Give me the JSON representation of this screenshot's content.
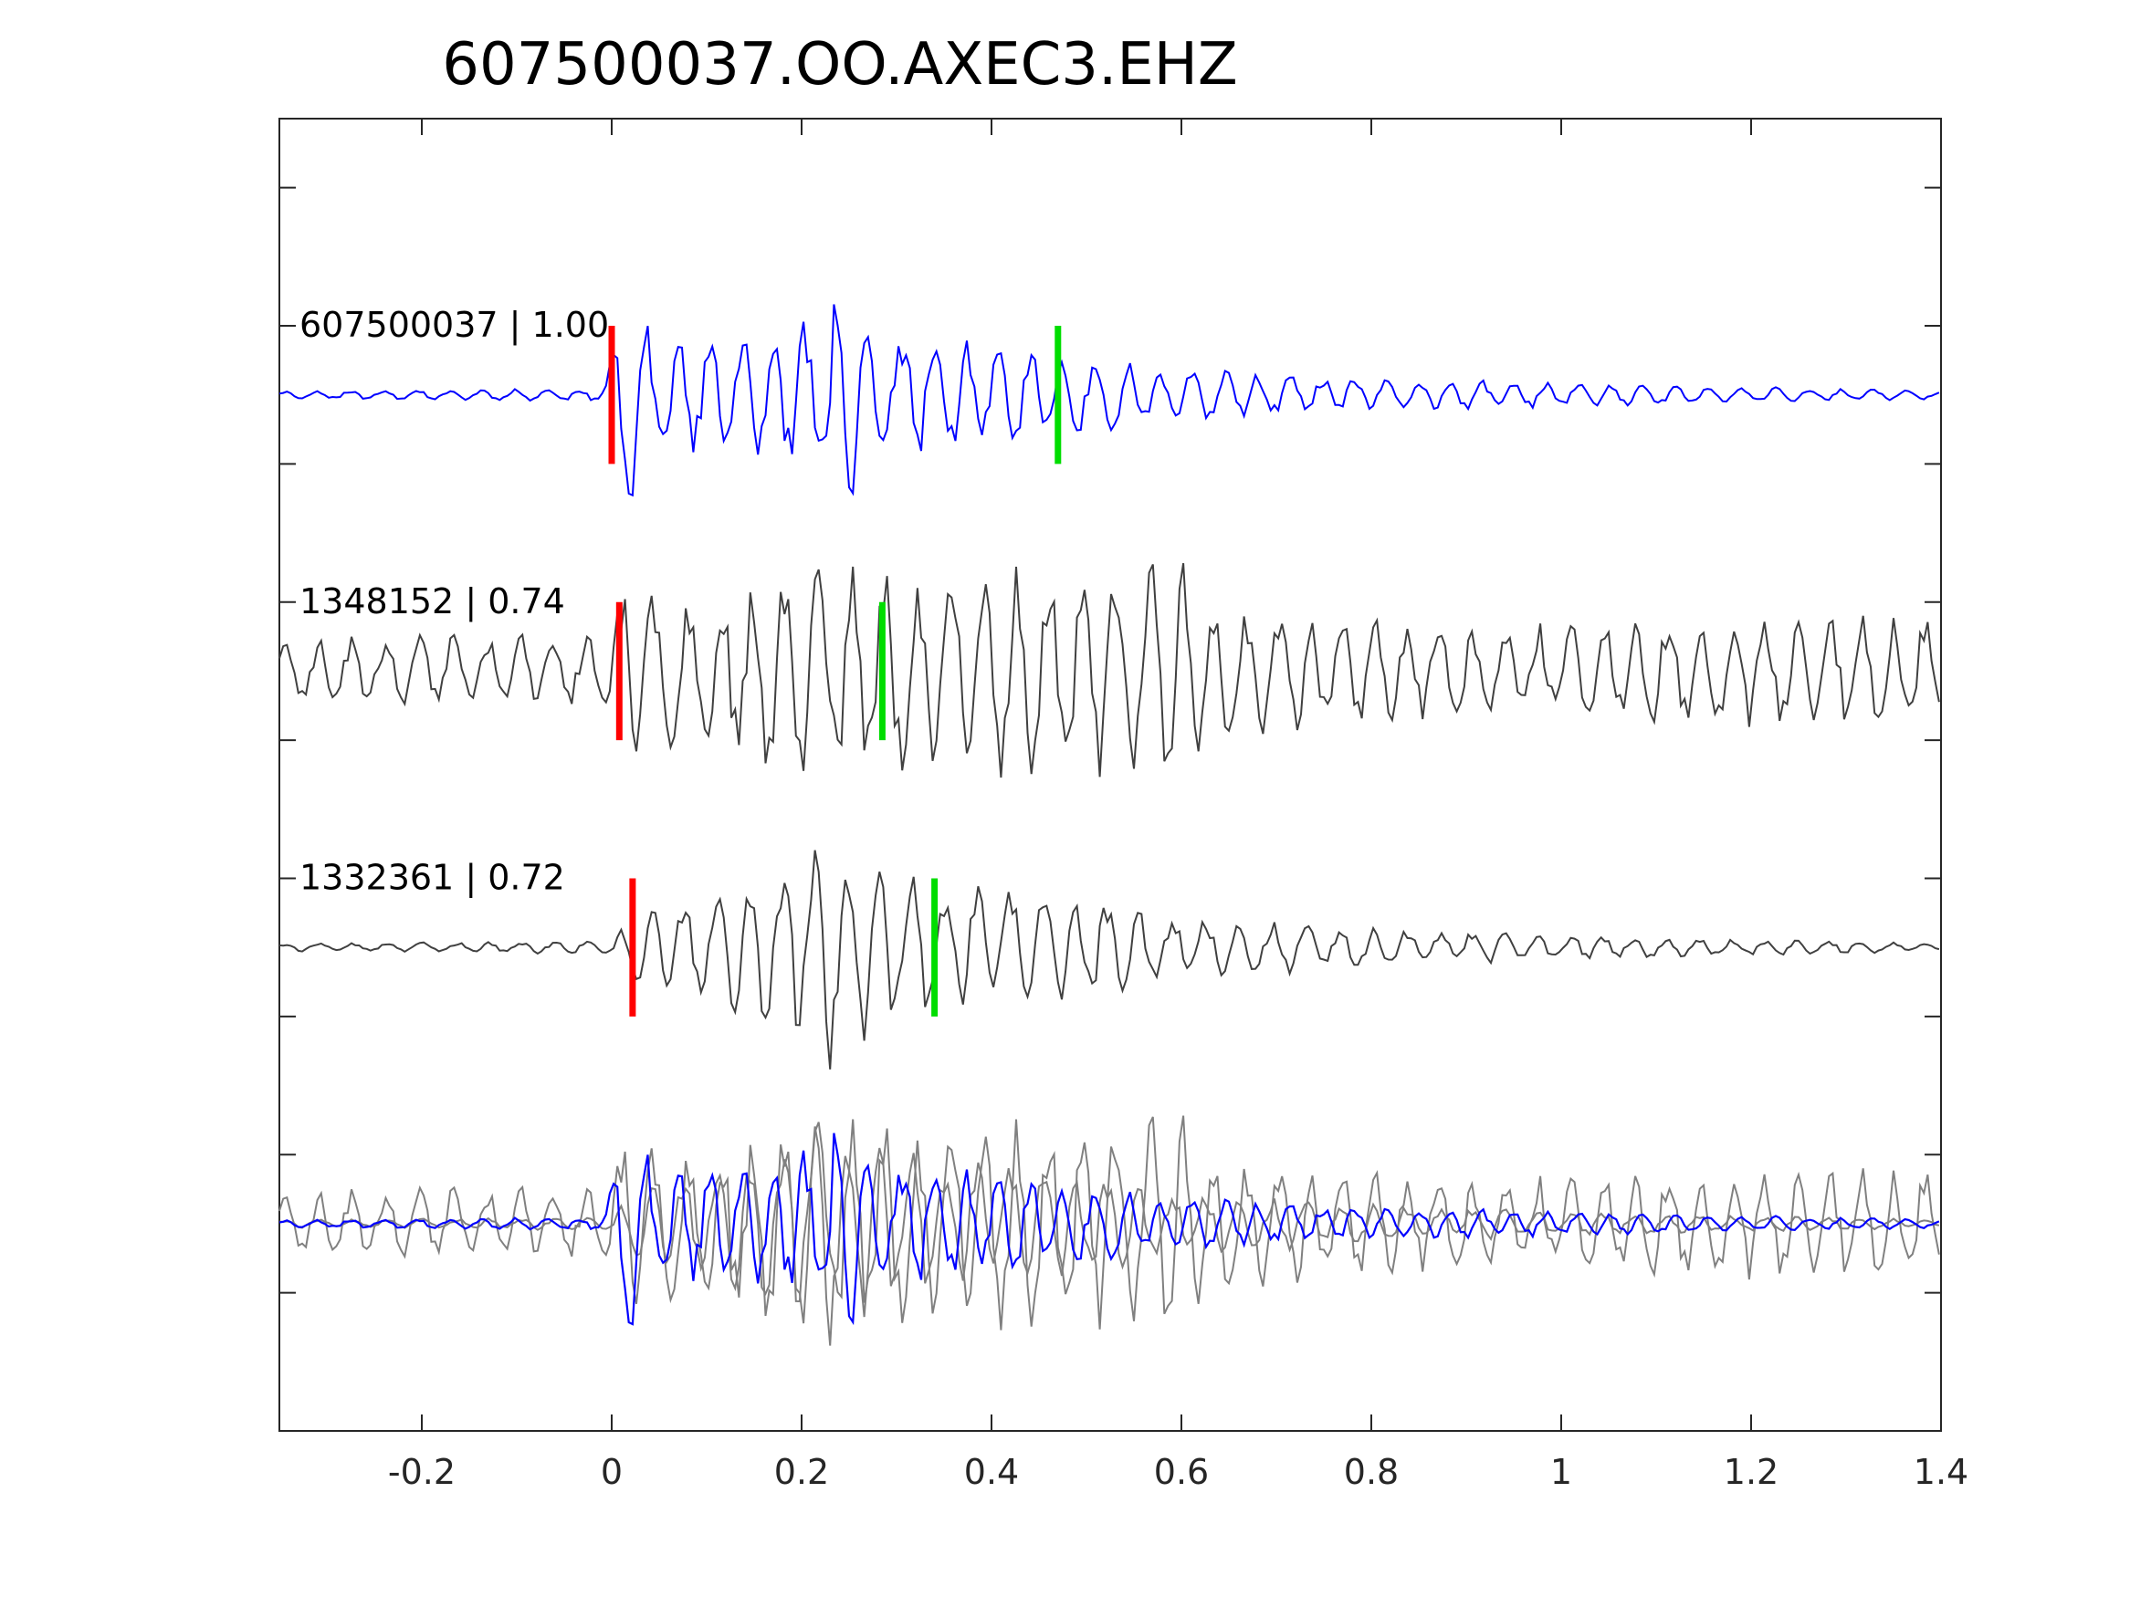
{
  "chart_data": {
    "type": "line",
    "title": "607500037.OO.AXEC3.EHZ",
    "xlabel": "",
    "ylabel": "",
    "xlim": [
      -0.35,
      1.4
    ],
    "xticks": [
      "-0.2",
      "0",
      "0.2",
      "0.4",
      "0.6",
      "0.8",
      "1",
      "1.2",
      "1.4"
    ],
    "xtick_values": [
      -0.2,
      0,
      0.2,
      0.4,
      0.6,
      0.8,
      1.0,
      1.2,
      1.4
    ],
    "ytick_count": 9,
    "ylim": [
      0,
      9.5
    ],
    "grid": false,
    "legend": "none",
    "traces": [
      {
        "label": "607500037 | 1.00",
        "color": "#0000ff",
        "baseline": 7.5,
        "amp": 0.9,
        "p_pick": 0.0,
        "s_pick": 0.47,
        "env": [
          [
            -0.35,
            0.03
          ],
          [
            -0.01,
            0.05
          ],
          [
            0.0,
            0.35
          ],
          [
            0.02,
            1.0
          ],
          [
            0.05,
            0.45
          ],
          [
            0.15,
            0.45
          ],
          [
            0.2,
            0.6
          ],
          [
            0.25,
            0.8
          ],
          [
            0.3,
            0.5
          ],
          [
            0.45,
            0.35
          ],
          [
            0.6,
            0.2
          ],
          [
            0.8,
            0.12
          ],
          [
            1.0,
            0.1
          ],
          [
            1.4,
            0.03
          ]
        ],
        "seed": 11
      },
      {
        "label": "1348152 | 0.74",
        "color": "#404040",
        "baseline": 5.5,
        "amp": 0.9,
        "p_pick": 0.008,
        "s_pick": 0.285,
        "env": [
          [
            -0.35,
            0.25
          ],
          [
            0.0,
            0.3
          ],
          [
            0.02,
            1.0
          ],
          [
            0.05,
            0.55
          ],
          [
            0.2,
            0.85
          ],
          [
            0.3,
            0.8
          ],
          [
            0.45,
            0.8
          ],
          [
            0.6,
            0.85
          ],
          [
            0.65,
            0.5
          ],
          [
            0.9,
            0.35
          ],
          [
            1.4,
            0.45
          ]
        ],
        "seed": 23
      },
      {
        "label": "1332361 | 0.72",
        "color": "#404040",
        "baseline": 3.5,
        "amp": 0.9,
        "p_pick": 0.022,
        "s_pick": 0.34,
        "env": [
          [
            -0.35,
            0.03
          ],
          [
            0.0,
            0.05
          ],
          [
            0.03,
            0.3
          ],
          [
            0.15,
            0.55
          ],
          [
            0.24,
            1.0
          ],
          [
            0.3,
            0.6
          ],
          [
            0.45,
            0.45
          ],
          [
            0.6,
            0.25
          ],
          [
            0.8,
            0.15
          ],
          [
            1.0,
            0.1
          ],
          [
            1.4,
            0.03
          ]
        ],
        "seed": 37
      }
    ],
    "overlay_baseline": 1.5,
    "colors": {
      "axis": "#262626",
      "p_pick": "#ff0000",
      "s_pick": "#00dd00",
      "overlay_gray": "#808080"
    }
  }
}
